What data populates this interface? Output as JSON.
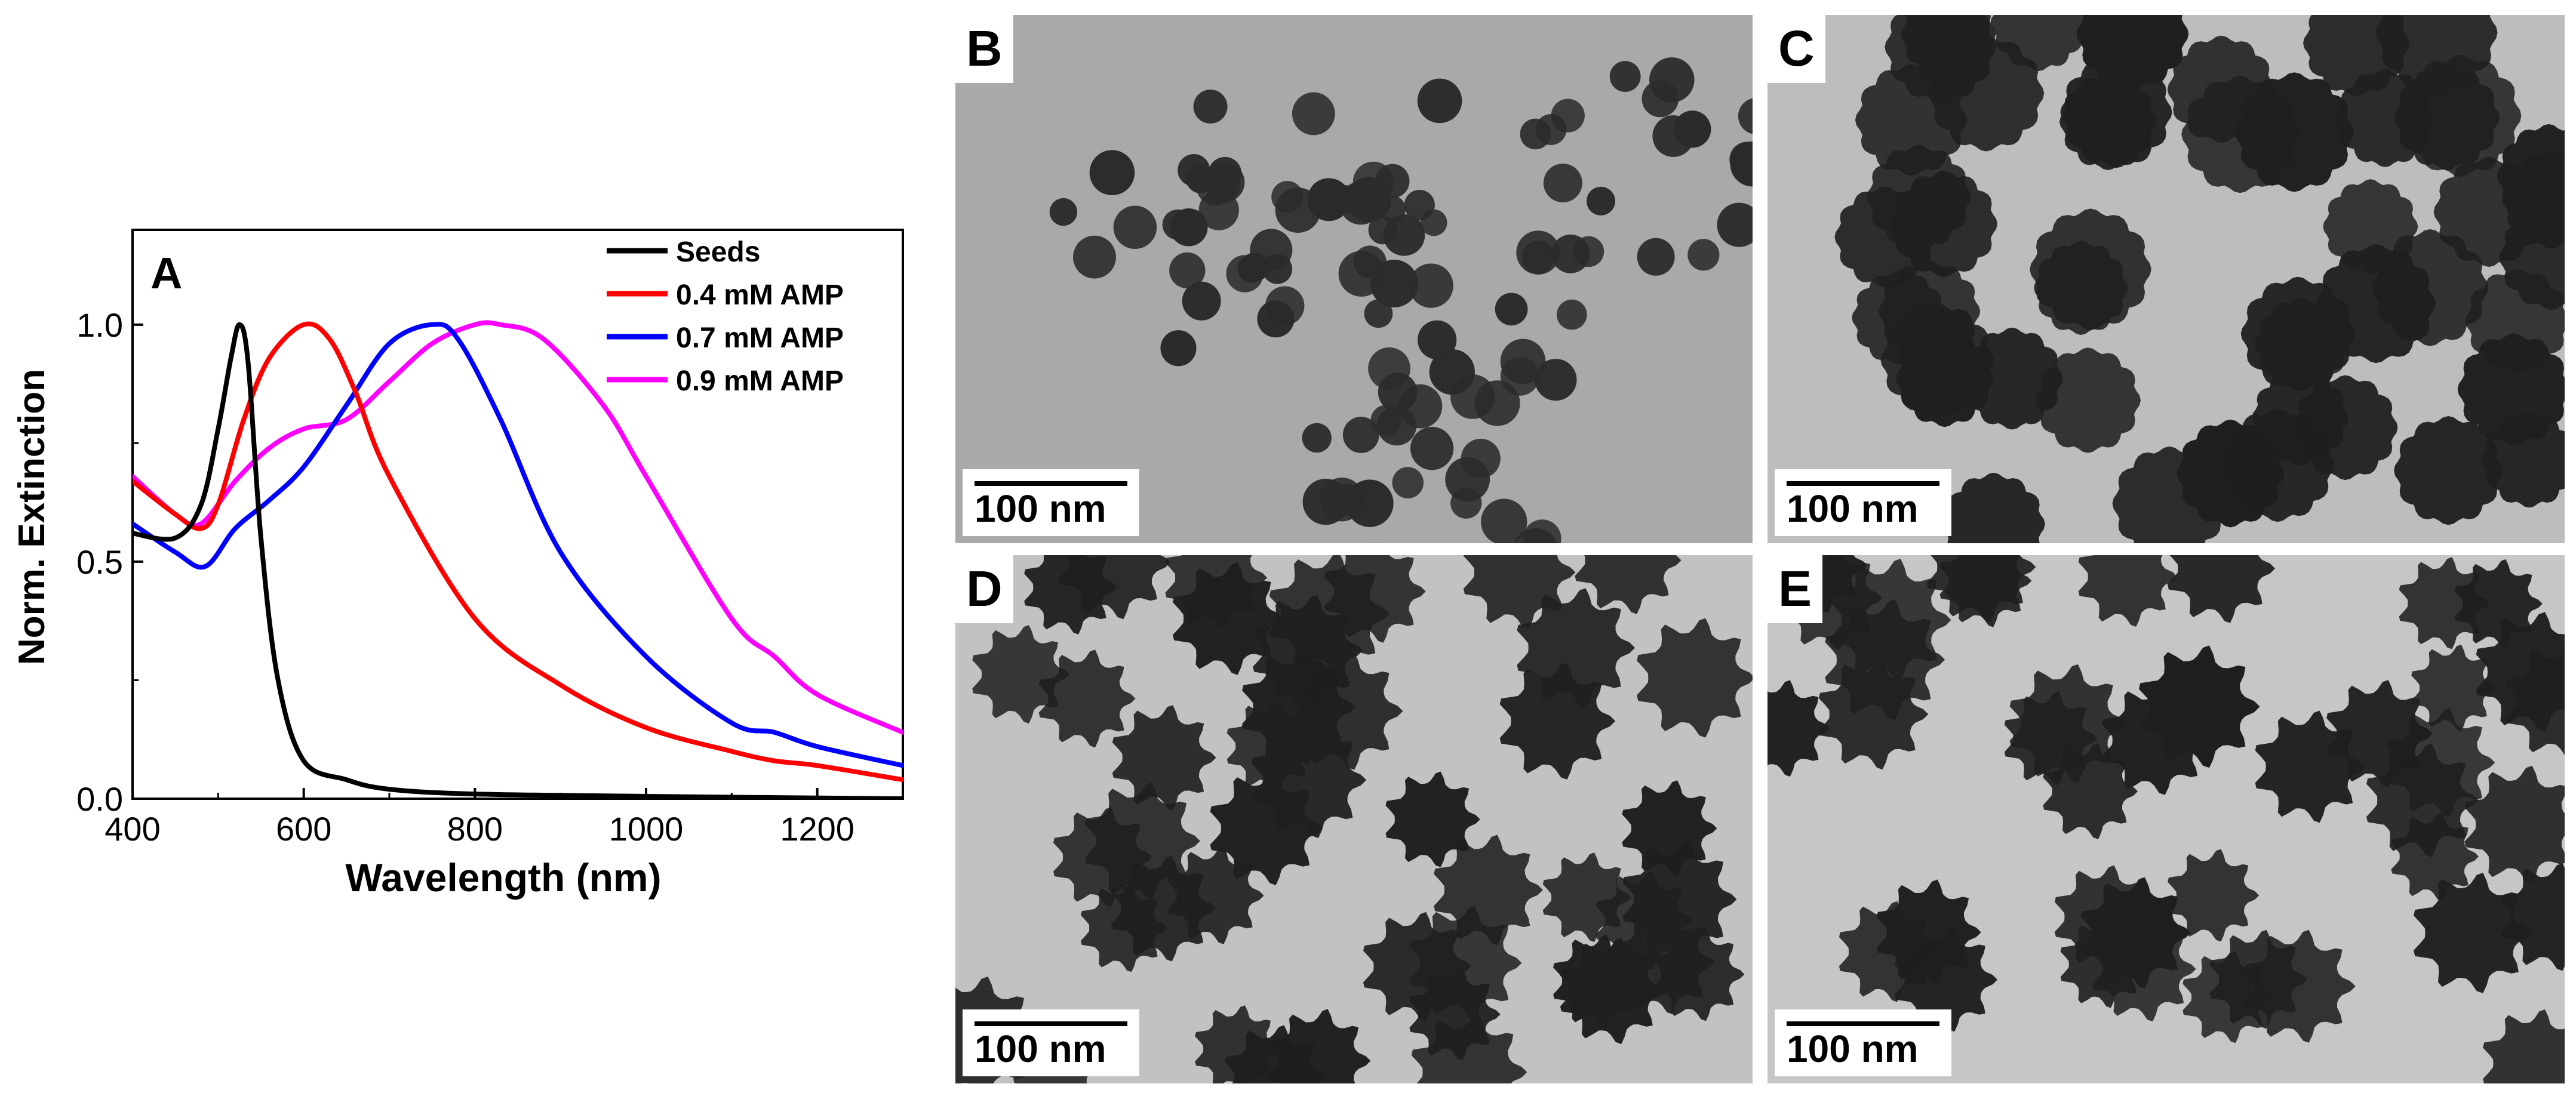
{
  "chart_data": {
    "type": "line",
    "panel_label": "A",
    "xlabel": "Wavelength (nm)",
    "ylabel": "Norm. Extinction",
    "xlim": [
      400,
      1300
    ],
    "ylim": [
      0,
      1.2
    ],
    "xticks": [
      400,
      600,
      800,
      1000,
      1200
    ],
    "xtick_labels": [
      "400",
      "600",
      "800",
      "1000",
      "1200"
    ],
    "yticks": [
      0,
      0.5,
      1.0
    ],
    "ytick_labels": [
      "0.0",
      "0.5",
      "1.0"
    ],
    "grid": false,
    "legend_position": "top-right",
    "series": [
      {
        "name": "Seeds",
        "color": "#000000",
        "x": [
          400,
          450,
          480,
          500,
          515,
          525,
          535,
          550,
          570,
          600,
          650,
          700,
          800,
          1000,
          1300
        ],
        "y": [
          0.56,
          0.55,
          0.62,
          0.78,
          0.93,
          1.0,
          0.92,
          0.55,
          0.25,
          0.08,
          0.04,
          0.02,
          0.01,
          0.005,
          0.0
        ]
      },
      {
        "name": "0.4 mM AMP",
        "color": "#ff0000",
        "x": [
          400,
          450,
          480,
          500,
          530,
          560,
          600,
          630,
          660,
          700,
          800,
          900,
          1000,
          1100,
          1150,
          1200,
          1300
        ],
        "y": [
          0.67,
          0.6,
          0.57,
          0.62,
          0.8,
          0.93,
          1.0,
          0.97,
          0.86,
          0.68,
          0.38,
          0.24,
          0.15,
          0.1,
          0.08,
          0.07,
          0.04
        ]
      },
      {
        "name": "0.7 mM AMP",
        "color": "#0000ff",
        "x": [
          400,
          450,
          485,
          520,
          560,
          600,
          650,
          700,
          750,
          780,
          830,
          900,
          1000,
          1100,
          1150,
          1200,
          1300
        ],
        "y": [
          0.58,
          0.52,
          0.49,
          0.57,
          0.63,
          0.7,
          0.83,
          0.96,
          1.0,
          0.97,
          0.8,
          0.52,
          0.3,
          0.16,
          0.14,
          0.11,
          0.07
        ]
      },
      {
        "name": "0.9 mM AMP",
        "color": "#ff00ff",
        "x": [
          400,
          450,
          480,
          520,
          560,
          600,
          650,
          700,
          750,
          800,
          830,
          880,
          950,
          1000,
          1100,
          1150,
          1200,
          1300
        ],
        "y": [
          0.68,
          0.6,
          0.58,
          0.67,
          0.74,
          0.78,
          0.8,
          0.88,
          0.96,
          1.0,
          1.0,
          0.97,
          0.83,
          0.68,
          0.38,
          0.3,
          0.22,
          0.14
        ]
      }
    ]
  },
  "tem_panels": [
    {
      "label": "B",
      "scalebar": "100 nm"
    },
    {
      "label": "C",
      "scalebar": "100 nm"
    },
    {
      "label": "D",
      "scalebar": "100 nm"
    },
    {
      "label": "E",
      "scalebar": "100 nm"
    }
  ]
}
